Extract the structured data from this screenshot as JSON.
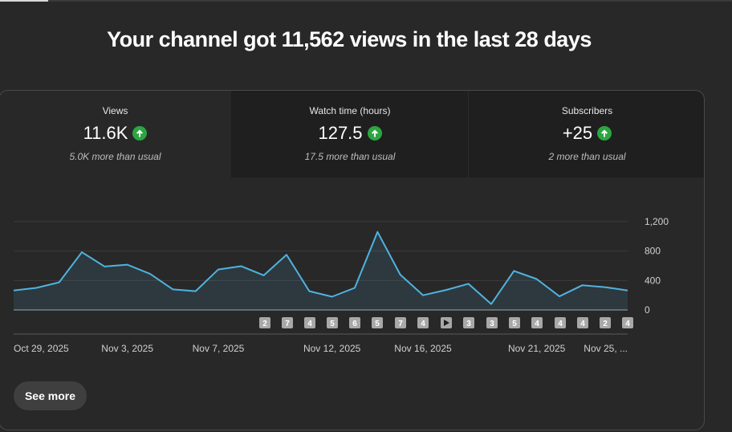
{
  "headline": "Your channel got 11,562 views in the last 28 days",
  "metrics": [
    {
      "label": "Views",
      "value": "11.6K",
      "note": "5.0K more than usual"
    },
    {
      "label": "Watch time (hours)",
      "value": "127.5",
      "note": "17.5 more than usual"
    },
    {
      "label": "Subscribers",
      "value": "+25",
      "note": "2 more than usual"
    }
  ],
  "colors": {
    "accent_line": "#4fb3e0",
    "up_badge": "#2ba640"
  },
  "see_more": "See more",
  "chart_data": {
    "type": "line",
    "title": "",
    "xlabel": "",
    "ylabel": "",
    "ylim": [
      0,
      1200
    ],
    "yticks": [
      "1,200",
      "800",
      "400",
      "0"
    ],
    "grid": true,
    "x_ticks": [
      "Oct 29, 2025",
      "Nov 3, 2025",
      "Nov 7, 2025",
      "Nov 12, 2025",
      "Nov 16, 2025",
      "Nov 21, 2025",
      "Nov 25, ..."
    ],
    "series": [
      {
        "values": [
          265,
          300,
          375,
          785,
          590,
          615,
          490,
          280,
          255,
          550,
          595,
          470,
          750,
          255,
          180,
          300,
          1060,
          480,
          200,
          270,
          355,
          80,
          530,
          420,
          185,
          335,
          310,
          265
        ]
      }
    ],
    "upload_markers": [
      "2",
      "7",
      "4",
      "5",
      "6",
      "5",
      "7",
      "4",
      "",
      "3",
      "3",
      "5",
      "4",
      "4",
      "4",
      "2",
      "4"
    ]
  }
}
